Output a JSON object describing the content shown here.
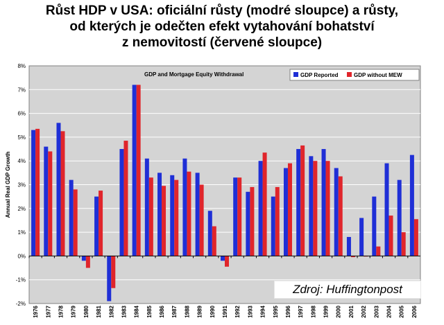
{
  "title_lines": [
    "Růst HDP v USA: oficiální růsty (modré sloupce) a růsty,",
    "od kterých je odečten efekt vytahování bohatství",
    "z nemovitostí (červené sloupce)"
  ],
  "source_label": "Zdroj: Huffingtonpost",
  "colors": {
    "reported": "#1f2fd6",
    "without_mew": "#e0252b",
    "plot_bg": "#d4d4d4"
  },
  "chart_data": {
    "type": "bar",
    "title": "GDP and Mortgage Equity Withdrawal",
    "ylabel": "Annual Real GDP Growth",
    "xlabel": "",
    "ylim": [
      -2,
      8
    ],
    "yticks": [
      "-2%",
      "-1%",
      "0%",
      "1%",
      "2%",
      "3%",
      "4%",
      "5%",
      "6%",
      "7%",
      "8%"
    ],
    "grid": true,
    "legend_position": "top-right",
    "categories": [
      "1976",
      "1977",
      "1978",
      "1979",
      "1980",
      "1981",
      "1982",
      "1983",
      "1984",
      "1985",
      "1986",
      "1987",
      "1988",
      "1989",
      "1990",
      "1991",
      "1992",
      "1993",
      "1994",
      "1995",
      "1996",
      "1997",
      "1998",
      "1999",
      "2000",
      "2001",
      "2002",
      "2003",
      "2004",
      "2005",
      "2006"
    ],
    "series": [
      {
        "name": "GDP Reported",
        "values": [
          5.3,
          4.6,
          5.6,
          3.2,
          -0.2,
          2.5,
          -1.9,
          4.5,
          7.2,
          4.1,
          3.5,
          3.4,
          4.1,
          3.5,
          1.9,
          -0.2,
          3.3,
          2.7,
          4.0,
          2.5,
          3.7,
          4.5,
          4.2,
          4.5,
          3.7,
          0.8,
          1.6,
          2.5,
          3.9,
          3.2,
          4.25
        ]
      },
      {
        "name": "GDP without MEW",
        "values": [
          5.35,
          4.4,
          5.25,
          2.8,
          -0.5,
          2.75,
          -1.35,
          4.85,
          7.2,
          3.3,
          2.95,
          3.2,
          3.55,
          3.0,
          1.25,
          -0.45,
          3.3,
          2.9,
          4.35,
          2.9,
          3.9,
          4.65,
          4.0,
          4.0,
          3.35,
          -0.05,
          0.0,
          0.4,
          1.7,
          1.0,
          1.55
        ]
      }
    ]
  }
}
